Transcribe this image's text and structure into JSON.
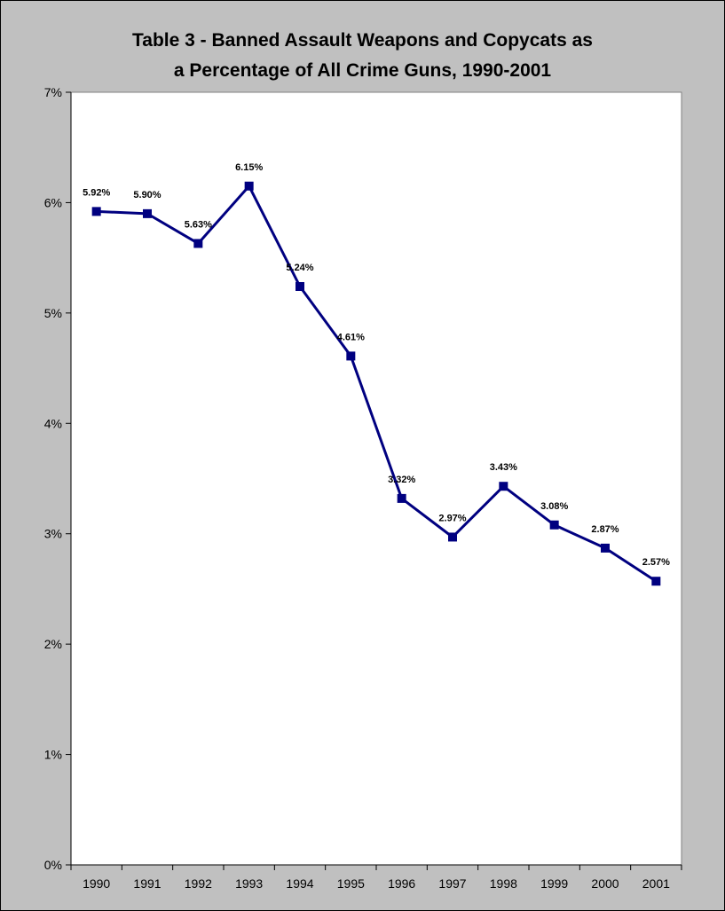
{
  "chart_data": {
    "type": "line",
    "title_line1": "Table 3 - Banned Assault Weapons and Copycats as",
    "title_line2": "a Percentage of All Crime Guns, 1990-2001",
    "xlabel": "",
    "ylabel": "",
    "categories": [
      "1990",
      "1991",
      "1992",
      "1993",
      "1994",
      "1995",
      "1996",
      "1997",
      "1998",
      "1999",
      "2000",
      "2001"
    ],
    "series": [
      {
        "values": [
          5.92,
          5.9,
          5.63,
          6.15,
          5.24,
          4.61,
          3.32,
          2.97,
          3.43,
          3.08,
          2.87,
          2.57
        ],
        "data_labels": [
          "5.92%",
          "5.90%",
          "5.63%",
          "6.15%",
          "5.24%",
          "4.61%",
          "3.32%",
          "2.97%",
          "3.43%",
          "3.08%",
          "2.87%",
          "2.57%"
        ]
      }
    ],
    "ylim": [
      0,
      7
    ],
    "yticks": [
      0,
      1,
      2,
      3,
      4,
      5,
      6,
      7
    ],
    "ytick_labels": [
      "0%",
      "1%",
      "2%",
      "3%",
      "4%",
      "5%",
      "6%",
      "7%"
    ],
    "grid": false,
    "legend": "none",
    "colors": {
      "line": "#000080",
      "frame_background": "#c0c0c0",
      "plot_background": "#ffffff"
    }
  }
}
